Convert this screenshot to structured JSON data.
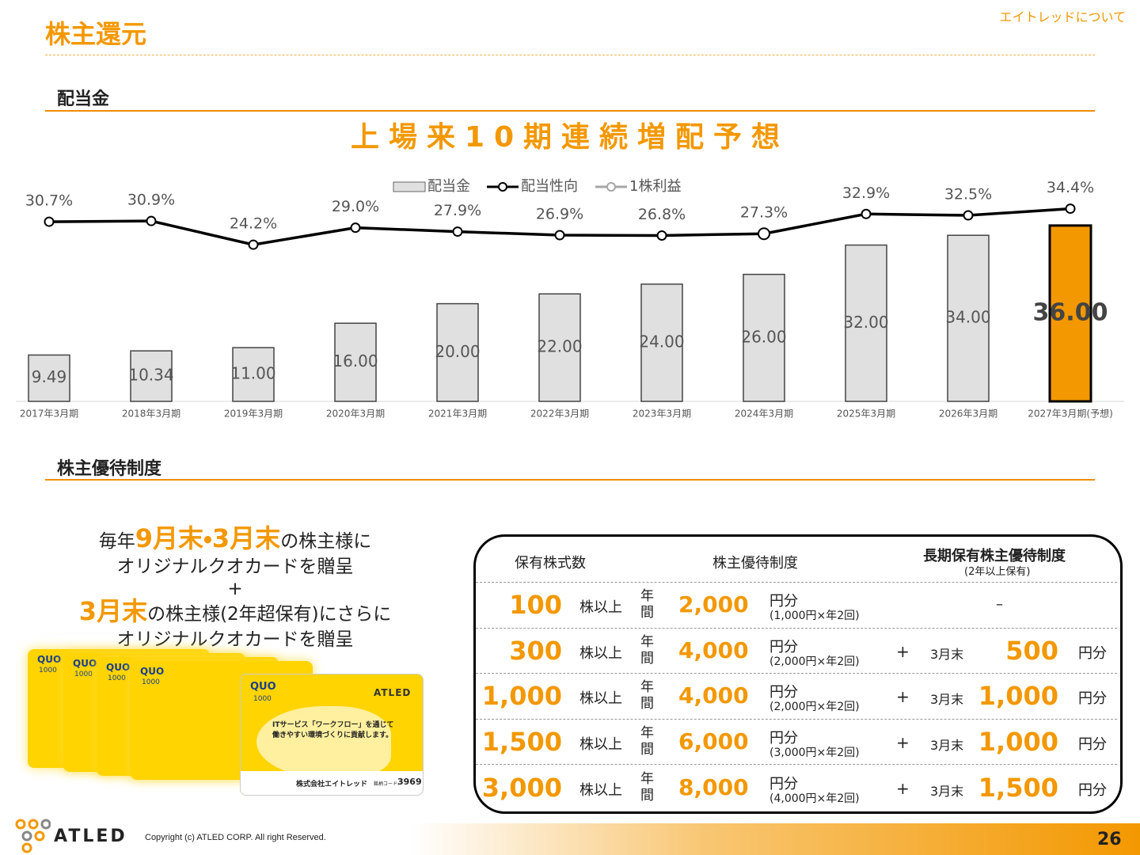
{
  "header": {
    "title": "株主還元",
    "nav": "エイトレッドについて"
  },
  "sections": [
    "配当金",
    "株主優待制度"
  ],
  "chart_data": {
    "type": "bar",
    "title": "上場来10期連続増配予想",
    "categories": [
      "2017年3月期",
      "2018年3月期",
      "2019年3月期",
      "2020年3月期",
      "2021年3月期",
      "2022年3月期",
      "2023年3月期",
      "2024年3月期",
      "2025年3月期",
      "2026年3月期",
      "2027年3月期(予想)"
    ],
    "series": [
      {
        "name": "配当金",
        "type": "bar",
        "color": "#e0e0e0",
        "colors": [
          "#e0e0e0",
          "#e0e0e0",
          "#e0e0e0",
          "#e0e0e0",
          "#e0e0e0",
          "#e0e0e0",
          "#e0e0e0",
          "#e0e0e0",
          "#e0e0e0",
          "#e0e0e0",
          "#f39800"
        ],
        "values": [
          9.49,
          10.34,
          11.0,
          16.0,
          20.0,
          22.0,
          24.0,
          26.0,
          32.0,
          34.0,
          36.0
        ],
        "value_labels": [
          "9.49",
          "10.34",
          "11.00",
          "16.00",
          "20.00",
          "22.00",
          "24.00",
          "26.00",
          "32.00",
          "34.00",
          "36.00"
        ]
      },
      {
        "name": "配当性向",
        "type": "line",
        "color": "#000000",
        "values": [
          30.7,
          30.9,
          24.2,
          29.0,
          27.9,
          26.9,
          26.8,
          27.3,
          32.9,
          32.5,
          34.4
        ],
        "value_labels": [
          "30.7%",
          "30.9%",
          "24.2%",
          "29.0%",
          "27.9%",
          "26.9%",
          "26.8%",
          "27.3%",
          "32.9%",
          "32.5%",
          "34.4%"
        ]
      },
      {
        "name": "1株利益",
        "type": "line",
        "color": "#a6a6a6"
      }
    ]
  },
  "promo": {
    "lines": [
      [
        {
          "text": "毎年"
        },
        {
          "text": "9月末・3月末",
          "highlight": true
        },
        {
          "text": "の株主様に"
        }
      ],
      [
        {
          "text": "オリジナルクオカードを贈呈"
        }
      ],
      [
        {
          "text": "+"
        }
      ],
      [
        {
          "text": "3月末",
          "highlight": true
        },
        {
          "text": "の株主様(2年超保有)にさらに"
        }
      ],
      [
        {
          "text": "オリジナルクオカードを贈呈"
        }
      ]
    ]
  },
  "card": {
    "brand": "QUO",
    "amount": "1000",
    "logo": "ATLED",
    "message": [
      "ITサービス「ワークフロー」を通じて",
      "働きやすい環境づくりに貢献します。"
    ],
    "company": "株式会社エイトレッド",
    "code_label": "銘柄コード:",
    "code": "3969"
  },
  "table": {
    "headers": [
      "保有株式数",
      "株主優待制度",
      "長期保有株主優待制度"
    ],
    "subheader": "(2年以上保有)",
    "rows": [
      {
        "shares": "100",
        "unit": "株以上",
        "period": "年間",
        "amount": "2,000",
        "amount_unit": "円分",
        "breakdown": "(1,000円×年2回)",
        "long_term": "–"
      },
      {
        "shares": "300",
        "unit": "株以上",
        "period": "年間",
        "amount": "4,000",
        "amount_unit": "円分",
        "breakdown": "(2,000円×年2回)",
        "plus": "+",
        "long_term_timing": "3月末",
        "long_term": "500",
        "long_term_unit": "円分"
      },
      {
        "shares": "1,000",
        "unit": "株以上",
        "period": "年間",
        "amount": "4,000",
        "amount_unit": "円分",
        "breakdown": "(2,000円×年2回)",
        "plus": "+",
        "long_term_timing": "3月末",
        "long_term": "1,000",
        "long_term_unit": "円分"
      },
      {
        "shares": "1,500",
        "unit": "株以上",
        "period": "年間",
        "amount": "6,000",
        "amount_unit": "円分",
        "breakdown": "(3,000円×年2回)",
        "plus": "+",
        "long_term_timing": "3月末",
        "long_term": "1,000",
        "long_term_unit": "円分"
      },
      {
        "shares": "3,000",
        "unit": "株以上",
        "period": "年間",
        "amount": "8,000",
        "amount_unit": "円分",
        "breakdown": "(4,000円×年2回)",
        "plus": "+",
        "long_term_timing": "3月末",
        "long_term": "1,500",
        "long_term_unit": "円分"
      }
    ]
  },
  "footer": {
    "logo": "ATLED",
    "copyright": "Copyright (c)  ATLED CORP. All right Reserved.",
    "page": "26"
  }
}
